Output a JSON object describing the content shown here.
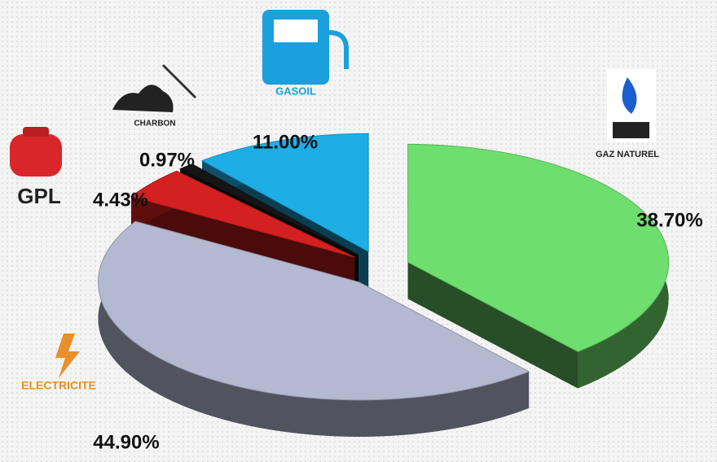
{
  "chart_data": {
    "type": "pie3d",
    "categories": [
      "GAZ NATUREL",
      "ELECTRICITE",
      "GPL",
      "CHARBON",
      "GASOIL"
    ],
    "values": [
      38.7,
      44.9,
      4.43,
      0.97,
      11.0
    ],
    "value_labels": [
      "38.70%",
      "44.90%",
      "4.43%",
      "0.97%",
      "11.00%"
    ],
    "colors": [
      "#6ede6e",
      "#b4b9d2",
      "#d42020",
      "#151515",
      "#1eaee6"
    ]
  }
}
